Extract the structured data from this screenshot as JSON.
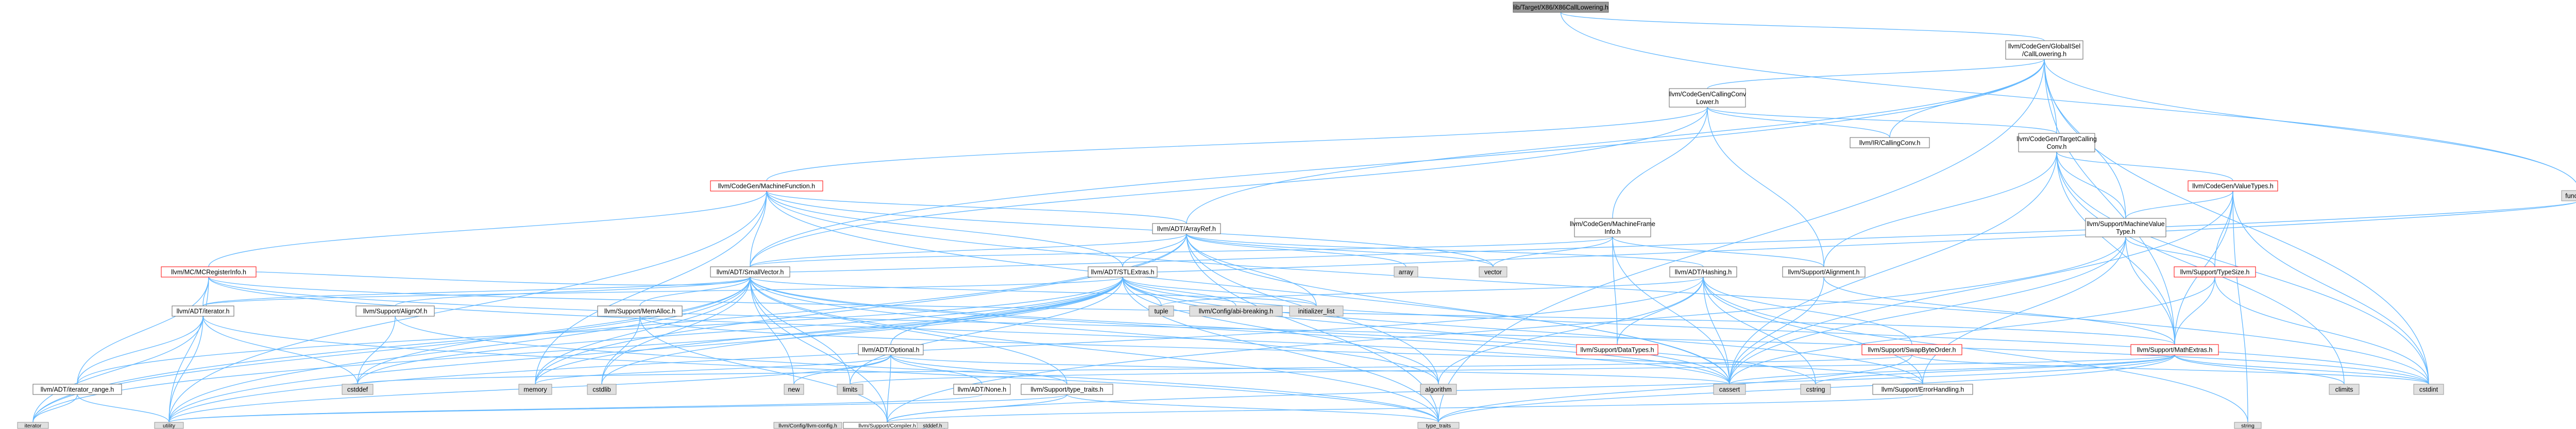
{
  "title": "lib/Target/X86/X86CallLowering.h include dependency graph",
  "colors": {
    "edge": "#63b8ff",
    "root_fill": "#999999",
    "node_border": "#666666",
    "truncated_border": "#ff0000",
    "system_fill": "#e0e0e0"
  },
  "nodes": [
    {
      "id": "root",
      "kind": "root",
      "lines": [
        "lib/Target/X86/X86CallLowering.h"
      ]
    },
    {
      "id": "gisel",
      "kind": "doc",
      "lines": [
        "llvm/CodeGen/GlobalISel",
        "/CallLowering.h"
      ]
    },
    {
      "id": "functional",
      "kind": "sys",
      "lines": [
        "functional"
      ]
    },
    {
      "id": "ccl",
      "kind": "doc",
      "lines": [
        "llvm/CodeGen/CallingConv",
        "Lower.h"
      ]
    },
    {
      "id": "irccl",
      "kind": "doc",
      "lines": [
        "llvm/IR/CallingConv.h"
      ]
    },
    {
      "id": "tcc",
      "kind": "doc",
      "lines": [
        "llvm/CodeGen/TargetCalling",
        "Conv.h"
      ]
    },
    {
      "id": "mf",
      "kind": "red",
      "lines": [
        "llvm/CodeGen/MachineFunction.h"
      ]
    },
    {
      "id": "vt",
      "kind": "red",
      "lines": [
        "llvm/CodeGen/ValueTypes.h"
      ]
    },
    {
      "id": "aref",
      "kind": "doc",
      "lines": [
        "llvm/ADT/ArrayRef.h"
      ]
    },
    {
      "id": "mfi",
      "kind": "doc",
      "lines": [
        "llvm/CodeGen/MachineFrame",
        "Info.h"
      ]
    },
    {
      "id": "mvt",
      "kind": "doc",
      "lines": [
        "llvm/Support/MachineValue",
        "Type.h"
      ]
    },
    {
      "id": "mcri",
      "kind": "red",
      "lines": [
        "llvm/MC/MCRegisterInfo.h"
      ]
    },
    {
      "id": "smv",
      "kind": "doc",
      "lines": [
        "llvm/ADT/SmallVector.h"
      ]
    },
    {
      "id": "stl",
      "kind": "doc",
      "lines": [
        "llvm/ADT/STLExtras.h"
      ]
    },
    {
      "id": "array",
      "kind": "sys",
      "lines": [
        "array"
      ]
    },
    {
      "id": "vector",
      "kind": "sys",
      "lines": [
        "vector"
      ]
    },
    {
      "id": "hashing",
      "kind": "doc",
      "lines": [
        "llvm/ADT/Hashing.h"
      ]
    },
    {
      "id": "align",
      "kind": "doc",
      "lines": [
        "llvm/Support/Alignment.h"
      ]
    },
    {
      "id": "tsize",
      "kind": "red",
      "lines": [
        "llvm/Support/TypeSize.h"
      ]
    },
    {
      "id": "iter",
      "kind": "doc",
      "lines": [
        "llvm/ADT/iterator.h"
      ]
    },
    {
      "id": "alignof",
      "kind": "doc",
      "lines": [
        "llvm/Support/AlignOf.h"
      ]
    },
    {
      "id": "memalloc",
      "kind": "doc",
      "lines": [
        "llvm/Support/MemAlloc.h"
      ]
    },
    {
      "id": "tuple",
      "kind": "sys",
      "lines": [
        "tuple"
      ]
    },
    {
      "id": "abibreak",
      "kind": "sys",
      "lines": [
        "llvm/Config/abi-breaking.h"
      ]
    },
    {
      "id": "initlist",
      "kind": "sys",
      "lines": [
        "initializer_list"
      ]
    },
    {
      "id": "optional",
      "kind": "doc",
      "lines": [
        "llvm/ADT/Optional.h"
      ]
    },
    {
      "id": "dtypes",
      "kind": "red",
      "lines": [
        "llvm/Support/DataTypes.h"
      ]
    },
    {
      "id": "swap",
      "kind": "red",
      "lines": [
        "llvm/Support/SwapByteOrder.h"
      ]
    },
    {
      "id": "mathx",
      "kind": "red",
      "lines": [
        "llvm/Support/MathExtras.h"
      ]
    },
    {
      "id": "itrange",
      "kind": "doc",
      "lines": [
        "llvm/ADT/iterator_range.h"
      ]
    },
    {
      "id": "cstddef",
      "kind": "sys",
      "lines": [
        "cstddef"
      ]
    },
    {
      "id": "memory",
      "kind": "sys",
      "lines": [
        "memory"
      ]
    },
    {
      "id": "new",
      "kind": "sys",
      "lines": [
        "new"
      ]
    },
    {
      "id": "limits",
      "kind": "sys",
      "lines": [
        "limits"
      ]
    },
    {
      "id": "none",
      "kind": "doc",
      "lines": [
        "llvm/ADT/None.h"
      ]
    },
    {
      "id": "typetraits",
      "kind": "doc",
      "lines": [
        "llvm/Support/type_traits.h"
      ]
    },
    {
      "id": "algorithm",
      "kind": "sys",
      "lines": [
        "algorithm"
      ]
    },
    {
      "id": "cassert",
      "kind": "sys",
      "lines": [
        "cassert"
      ]
    },
    {
      "id": "cstring",
      "kind": "sys",
      "lines": [
        "cstring"
      ]
    },
    {
      "id": "errh",
      "kind": "doc",
      "lines": [
        "llvm/Support/ErrorHandling.h"
      ]
    },
    {
      "id": "climits",
      "kind": "sys",
      "lines": [
        "climits"
      ]
    },
    {
      "id": "cstdint",
      "kind": "sys",
      "lines": [
        "cstdint"
      ]
    },
    {
      "id": "cstdlib",
      "kind": "sys",
      "lines": [
        "cstdlib"
      ]
    },
    {
      "id": "iterator",
      "kind": "sys",
      "lines": [
        "iterator"
      ]
    },
    {
      "id": "utility",
      "kind": "sys",
      "lines": [
        "utility"
      ]
    },
    {
      "id": "compiler",
      "kind": "doc",
      "lines": [
        "llvm/Support/Compiler.h"
      ]
    },
    {
      "id": "stdtraits",
      "kind": "sys",
      "lines": [
        "type_traits"
      ]
    },
    {
      "id": "string",
      "kind": "sys",
      "lines": [
        "string"
      ]
    },
    {
      "id": "llvmcfg",
      "kind": "sys",
      "lines": [
        "llvm/Config/llvm-config.h"
      ]
    },
    {
      "id": "stddef",
      "kind": "sys",
      "lines": [
        "stddef.h"
      ]
    }
  ],
  "edges": [
    [
      "root",
      "gisel"
    ],
    [
      "root",
      "functional"
    ],
    [
      "gisel",
      "ccl"
    ],
    [
      "gisel",
      "irccl"
    ],
    [
      "gisel",
      "tcc"
    ],
    [
      "gisel",
      "aref"
    ],
    [
      "gisel",
      "smv"
    ],
    [
      "gisel",
      "mvt"
    ],
    [
      "gisel",
      "cstdint"
    ],
    [
      "gisel",
      "functional"
    ],
    [
      "gisel",
      "mathx"
    ],
    [
      "gisel",
      "stdtraits"
    ],
    [
      "ccl",
      "irccl"
    ],
    [
      "ccl",
      "tcc"
    ],
    [
      "ccl",
      "mf"
    ],
    [
      "ccl",
      "mfi"
    ],
    [
      "ccl",
      "align"
    ],
    [
      "ccl",
      "smv"
    ],
    [
      "tcc",
      "vt"
    ],
    [
      "tcc",
      "mvt"
    ],
    [
      "tcc",
      "align"
    ],
    [
      "tcc",
      "mathx"
    ],
    [
      "tcc",
      "cassert"
    ],
    [
      "tcc",
      "climits"
    ],
    [
      "tcc",
      "cstdint"
    ],
    [
      "mf",
      "aref"
    ],
    [
      "mf",
      "smv"
    ],
    [
      "mf",
      "mcri"
    ],
    [
      "mf",
      "stl"
    ],
    [
      "mf",
      "memory"
    ],
    [
      "mf",
      "utility"
    ],
    [
      "mf",
      "vector"
    ],
    [
      "mf",
      "cassert"
    ],
    [
      "mf",
      "cstdint"
    ],
    [
      "vt",
      "mvt"
    ],
    [
      "vt",
      "tsize"
    ],
    [
      "vt",
      "mathx"
    ],
    [
      "vt",
      "cassert"
    ],
    [
      "vt",
      "cstdint"
    ],
    [
      "vt",
      "string"
    ],
    [
      "aref",
      "smv"
    ],
    [
      "aref",
      "stl"
    ],
    [
      "aref",
      "hashing"
    ],
    [
      "aref",
      "array"
    ],
    [
      "aref",
      "vector"
    ],
    [
      "aref",
      "algorithm"
    ],
    [
      "aref",
      "cassert"
    ],
    [
      "aref",
      "initlist"
    ],
    [
      "aref",
      "iterator"
    ],
    [
      "aref",
      "memory"
    ],
    [
      "aref",
      "stdtraits"
    ],
    [
      "mfi",
      "smv"
    ],
    [
      "mfi",
      "align"
    ],
    [
      "mfi",
      "dtypes"
    ],
    [
      "mfi",
      "cassert"
    ],
    [
      "mfi",
      "vector"
    ],
    [
      "mvt",
      "tsize"
    ],
    [
      "mvt",
      "mathx"
    ],
    [
      "mvt",
      "errh"
    ],
    [
      "mvt",
      "cassert"
    ],
    [
      "mvt",
      "compiler"
    ],
    [
      "mcri",
      "smv"
    ],
    [
      "mcri",
      "iter"
    ],
    [
      "mcri",
      "itrange"
    ],
    [
      "mcri",
      "mathx"
    ],
    [
      "mcri",
      "cassert"
    ],
    [
      "mcri",
      "cstdint"
    ],
    [
      "mcri",
      "utility"
    ],
    [
      "smv",
      "iter"
    ],
    [
      "smv",
      "alignof"
    ],
    [
      "smv",
      "memalloc"
    ],
    [
      "smv",
      "compiler"
    ],
    [
      "smv",
      "typetraits"
    ],
    [
      "smv",
      "algorithm"
    ],
    [
      "smv",
      "cassert"
    ],
    [
      "smv",
      "cstddef"
    ],
    [
      "smv",
      "cstdlib"
    ],
    [
      "smv",
      "cstring"
    ],
    [
      "smv",
      "functional"
    ],
    [
      "smv",
      "initlist"
    ],
    [
      "smv",
      "iterator"
    ],
    [
      "smv",
      "limits"
    ],
    [
      "smv",
      "memory"
    ],
    [
      "smv",
      "new"
    ],
    [
      "smv",
      "stdtraits"
    ],
    [
      "smv",
      "utility"
    ],
    [
      "stl",
      "optional"
    ],
    [
      "stl",
      "iter"
    ],
    [
      "stl",
      "itrange"
    ],
    [
      "stl",
      "tuple"
    ],
    [
      "stl",
      "abibreak"
    ],
    [
      "stl",
      "errh"
    ],
    [
      "stl",
      "algorithm"
    ],
    [
      "stl",
      "cassert"
    ],
    [
      "stl",
      "cstddef"
    ],
    [
      "stl",
      "cstdint"
    ],
    [
      "stl",
      "cstdlib"
    ],
    [
      "stl",
      "functional"
    ],
    [
      "stl",
      "initlist"
    ],
    [
      "stl",
      "iterator"
    ],
    [
      "stl",
      "limits"
    ],
    [
      "stl",
      "memory"
    ],
    [
      "stl",
      "utility"
    ],
    [
      "stl",
      "stdtraits"
    ],
    [
      "hashing",
      "dtypes"
    ],
    [
      "hashing",
      "errh"
    ],
    [
      "hashing",
      "swap"
    ],
    [
      "hashing",
      "algorithm"
    ],
    [
      "hashing",
      "cassert"
    ],
    [
      "hashing",
      "cstring"
    ],
    [
      "hashing",
      "string"
    ],
    [
      "hashing",
      "tuple"
    ],
    [
      "hashing",
      "utility"
    ],
    [
      "align",
      "mathx"
    ],
    [
      "align",
      "cassert"
    ],
    [
      "tsize",
      "mathx"
    ],
    [
      "tsize",
      "cassert"
    ],
    [
      "tsize",
      "cstdint"
    ],
    [
      "iter",
      "itrange"
    ],
    [
      "iter",
      "cstddef"
    ],
    [
      "iter",
      "iterator"
    ],
    [
      "iter",
      "utility"
    ],
    [
      "iter",
      "stdtraits"
    ],
    [
      "alignof",
      "stdtraits"
    ],
    [
      "alignof",
      "cstddef"
    ],
    [
      "memalloc",
      "compiler"
    ],
    [
      "memalloc",
      "errh"
    ],
    [
      "memalloc",
      "cstdlib"
    ],
    [
      "optional",
      "none"
    ],
    [
      "optional",
      "compiler"
    ],
    [
      "optional",
      "typetraits"
    ],
    [
      "optional",
      "cassert"
    ],
    [
      "optional",
      "memory"
    ],
    [
      "optional",
      "new"
    ],
    [
      "optional",
      "utility"
    ],
    [
      "swap",
      "cstddef"
    ],
    [
      "swap",
      "cstdint"
    ],
    [
      "swap",
      "stdtraits"
    ],
    [
      "mathx",
      "compiler"
    ],
    [
      "mathx",
      "cassert"
    ],
    [
      "mathx",
      "climits"
    ],
    [
      "mathx",
      "cstdint"
    ],
    [
      "mathx",
      "cstring"
    ],
    [
      "mathx",
      "limits"
    ],
    [
      "mathx",
      "stdtraits"
    ],
    [
      "itrange",
      "iterator"
    ],
    [
      "itrange",
      "utility"
    ],
    [
      "none",
      "utility"
    ],
    [
      "typetraits",
      "compiler"
    ],
    [
      "typetraits",
      "stdtraits"
    ],
    [
      "typetraits",
      "utility"
    ],
    [
      "errh",
      "compiler"
    ],
    [
      "compiler",
      "llvmcfg"
    ],
    [
      "compiler",
      "stddef"
    ]
  ]
}
